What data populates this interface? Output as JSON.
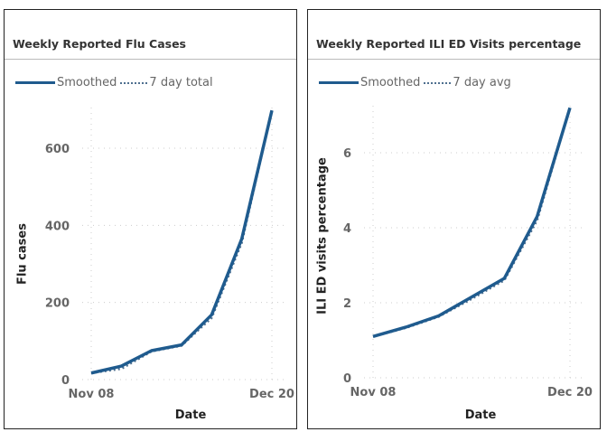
{
  "chart_data": [
    {
      "type": "line",
      "title": "Weekly Reported Flu Cases",
      "xlabel": "Date",
      "ylabel": "Flu cases",
      "x": [
        "Nov 08",
        "Nov 15",
        "Nov 22",
        "Nov 29",
        "Dec 06",
        "Dec 13",
        "Dec 20"
      ],
      "x_tick_labels": [
        "Nov 08",
        "Dec 20"
      ],
      "y_ticks": [
        0,
        200,
        400,
        600
      ],
      "ylim": [
        0,
        700
      ],
      "grid": true,
      "legend": "top-left",
      "series": [
        {
          "name": "Smoothed",
          "style": "solid",
          "values": [
            17,
            35,
            75,
            90,
            168,
            365,
            698
          ]
        },
        {
          "name": "7 day total",
          "style": "dotted",
          "values": [
            17,
            28,
            73,
            88,
            160,
            355,
            698
          ]
        }
      ]
    },
    {
      "type": "line",
      "title": "Weekly Reported ILI ED Visits percentage",
      "xlabel": "Date",
      "ylabel": "ILI ED visits percentage",
      "x": [
        "Nov 08",
        "Nov 15",
        "Nov 22",
        "Nov 29",
        "Dec 06",
        "Dec 13",
        "Dec 20"
      ],
      "x_tick_labels": [
        "Nov 08",
        "Dec 20"
      ],
      "y_ticks": [
        0,
        2,
        4,
        6
      ],
      "ylim": [
        0,
        7.2
      ],
      "grid": true,
      "legend": "top-left",
      "series": [
        {
          "name": "Smoothed",
          "style": "solid",
          "values": [
            1.1,
            1.35,
            1.65,
            2.15,
            2.65,
            4.3,
            7.2
          ]
        },
        {
          "name": "7 day avg",
          "style": "dotted",
          "values": [
            1.1,
            1.33,
            1.63,
            2.1,
            2.6,
            4.2,
            7.2
          ]
        }
      ]
    }
  ],
  "colors": {
    "line": "#1f5b8e",
    "dotted": "#4f7090",
    "grid": "#ccc"
  }
}
